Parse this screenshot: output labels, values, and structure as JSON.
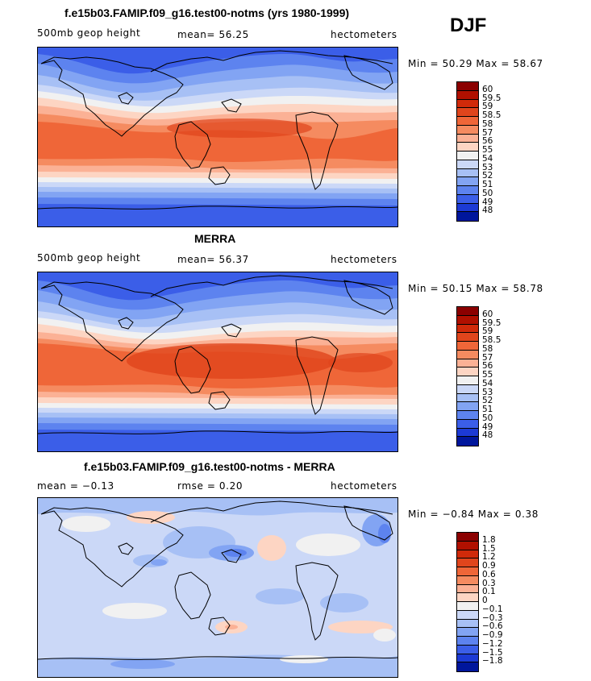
{
  "season": "DJF",
  "panels": [
    {
      "title": "f.e15b03.FAMIP.f09_g16.test00-notms (yrs 1980-1999)",
      "left_label": "500mb geop height",
      "center_label": "mean=  56.25",
      "units": "hectometers",
      "min_max": "Min =  50.29 Max =  58.67",
      "levels": [
        "60",
        "59.5",
        "59",
        "58.5",
        "58",
        "57",
        "56",
        "55",
        "54",
        "53",
        "52",
        "51",
        "50",
        "49",
        "48"
      ],
      "colors": [
        "#8b0000",
        "#b01000",
        "#d02a0a",
        "#e0451c",
        "#ef6638",
        "#f58b60",
        "#fbb195",
        "#fdd5c3",
        "#f1f1f1",
        "#cbd8f7",
        "#a7c0f5",
        "#82a4f3",
        "#5d83ef",
        "#3b5ee8",
        "#1c3ad5",
        "#00169c"
      ]
    },
    {
      "title": "MERRA",
      "left_label": "500mb geop height",
      "center_label": "mean=  56.37",
      "units": "hectometers",
      "min_max": "Min =  50.15 Max =  58.78",
      "levels": [
        "60",
        "59.5",
        "59",
        "58.5",
        "58",
        "57",
        "56",
        "55",
        "54",
        "53",
        "52",
        "51",
        "50",
        "49",
        "48"
      ],
      "colors": [
        "#8b0000",
        "#b01000",
        "#d02a0a",
        "#e0451c",
        "#ef6638",
        "#f58b60",
        "#fbb195",
        "#fdd5c3",
        "#f1f1f1",
        "#cbd8f7",
        "#a7c0f5",
        "#82a4f3",
        "#5d83ef",
        "#3b5ee8",
        "#1c3ad5",
        "#00169c"
      ]
    },
    {
      "title": "f.e15b03.FAMIP.f09_g16.test00-notms - MERRA",
      "left_label": "mean =  −0.13",
      "center_label": "rmse =   0.20",
      "units": "hectometers",
      "min_max": "Min =  −0.84 Max =   0.38",
      "levels": [
        "1.8",
        "1.5",
        "1.2",
        "0.9",
        "0.6",
        "0.3",
        "0.1",
        "0",
        "−0.1",
        "−0.3",
        "−0.6",
        "−0.9",
        "−1.2",
        "−1.5",
        "−1.8"
      ],
      "colors": [
        "#8b0000",
        "#b01000",
        "#d02a0a",
        "#e0451c",
        "#ef6638",
        "#f58b60",
        "#fbb195",
        "#fdd5c3",
        "#f1f1f1",
        "#cbd8f7",
        "#a7c0f5",
        "#82a4f3",
        "#5d83ef",
        "#3b5ee8",
        "#1c3ad5",
        "#00169c"
      ]
    }
  ]
}
